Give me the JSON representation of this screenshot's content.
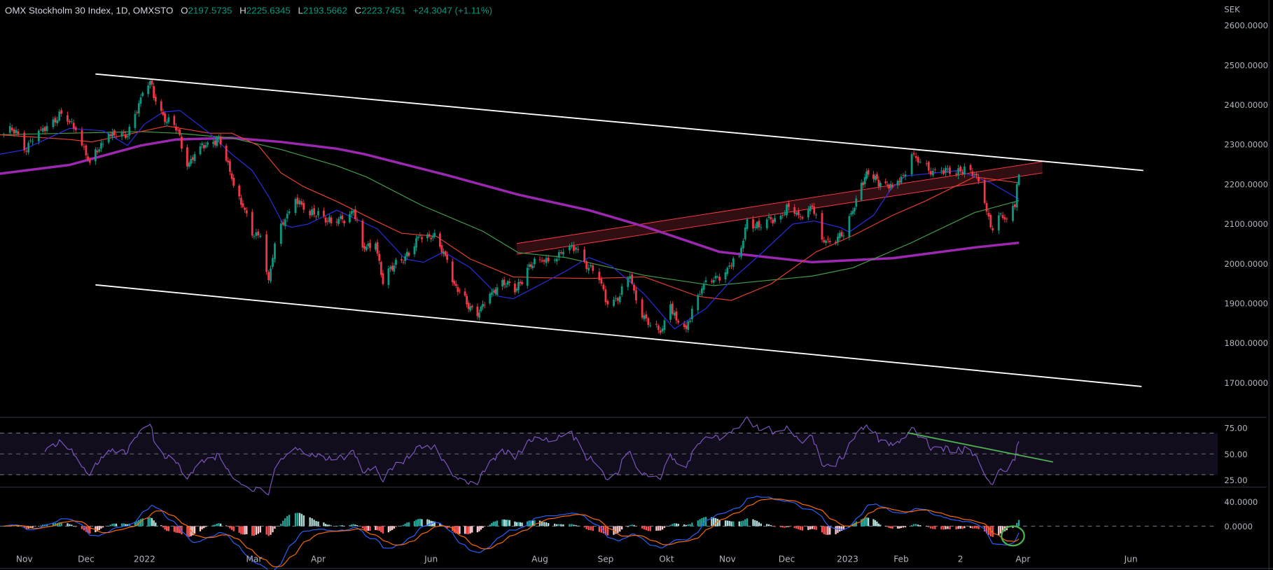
{
  "header": {
    "symbol": "OMX Stockholm 30 Index, 1D, OMXSTO",
    "open_label": "O",
    "open": "2197.5735",
    "high_label": "H",
    "high": "2225.6345",
    "low_label": "L",
    "low": "2193.5662",
    "close_label": "C",
    "close": "2223.7451",
    "change": "+24.3047 (+1.11%)"
  },
  "colors": {
    "up": "#089981",
    "down": "#f23645",
    "ma_fast": "#2a2ee6",
    "ma_mid": "#e8402c",
    "ma_slow": "#43a047",
    "ma_long": "#9c27b0",
    "rsi": "#7e57c2",
    "macd": "#2962ff",
    "signal": "#ff6d00",
    "hist_up_strong": "#26a69a",
    "hist_up_weak": "#b2dfdb",
    "hist_down_strong": "#ff5252",
    "hist_down_weak": "#ffcdd2",
    "channel": "#f23645",
    "trendline": "#ffffff",
    "annotation": "#4caf50"
  },
  "chart_data": {
    "type": "candlestick",
    "currency": "SEK",
    "ylim": [
      1640,
      2640
    ],
    "price_ticks": [
      "2600.0000",
      "2500.0000",
      "2400.0000",
      "2300.0000",
      "2200.0000",
      "2100.0000",
      "2000.0000",
      "1900.0000",
      "1800.0000",
      "1700.0000"
    ],
    "x_ticks": [
      {
        "label": "Nov",
        "date": "2021-11-01"
      },
      {
        "label": "Dec",
        "date": "2021-12-01"
      },
      {
        "label": "2022",
        "date": "2022-01-01"
      },
      {
        "label": "Mar",
        "date": "2022-03-01"
      },
      {
        "label": "Apr",
        "date": "2022-04-01"
      },
      {
        "label": "Jun",
        "date": "2022-06-01"
      },
      {
        "label": "Aug",
        "date": "2022-08-01"
      },
      {
        "label": "Sep",
        "date": "2022-09-01"
      },
      {
        "label": "Okt",
        "date": "2022-10-01"
      },
      {
        "label": "Nov",
        "date": "2022-11-01"
      },
      {
        "label": "Dec",
        "date": "2022-12-01"
      },
      {
        "label": "2023",
        "date": "2023-01-01"
      },
      {
        "label": "Feb",
        "date": "2023-02-01"
      },
      {
        "label": "2",
        "date": "2023-03-01"
      },
      {
        "label": "Apr",
        "date": "2023-04-01"
      },
      {
        "label": "Jun",
        "date": "2023-06-01"
      }
    ],
    "closes": [
      [
        "2021-10-22",
        2326
      ],
      [
        "2021-10-28",
        2336
      ],
      [
        "2021-11-01",
        2285
      ],
      [
        "2021-11-09",
        2336
      ],
      [
        "2021-11-19",
        2377
      ],
      [
        "2021-11-26",
        2336
      ],
      [
        "2021-12-03",
        2254
      ],
      [
        "2021-12-13",
        2326
      ],
      [
        "2021-12-22",
        2316
      ],
      [
        "2021-12-30",
        2418
      ],
      [
        "2022-01-04",
        2459
      ],
      [
        "2022-01-07",
        2408
      ],
      [
        "2022-01-13",
        2357
      ],
      [
        "2022-01-19",
        2336
      ],
      [
        "2022-01-24",
        2244
      ],
      [
        "2022-01-31",
        2295
      ],
      [
        "2022-02-07",
        2306
      ],
      [
        "2022-02-10",
        2316
      ],
      [
        "2022-02-17",
        2213
      ],
      [
        "2022-02-23",
        2142
      ],
      [
        "2022-02-28",
        2070
      ],
      [
        "2022-03-04",
        2070
      ],
      [
        "2022-03-08",
        1958
      ],
      [
        "2022-03-11",
        2050
      ],
      [
        "2022-03-16",
        2111
      ],
      [
        "2022-03-21",
        2162
      ],
      [
        "2022-03-28",
        2121
      ],
      [
        "2022-04-01",
        2132
      ],
      [
        "2022-04-08",
        2101
      ],
      [
        "2022-04-14",
        2111
      ],
      [
        "2022-04-20",
        2132
      ],
      [
        "2022-04-25",
        2040
      ],
      [
        "2022-05-02",
        2050
      ],
      [
        "2022-05-06",
        1948
      ],
      [
        "2022-05-13",
        2009
      ],
      [
        "2022-05-20",
        2019
      ],
      [
        "2022-05-26",
        2070
      ],
      [
        "2022-06-02",
        2070
      ],
      [
        "2022-06-10",
        2009
      ],
      [
        "2022-06-14",
        1948
      ],
      [
        "2022-06-21",
        1897
      ],
      [
        "2022-06-28",
        1876
      ],
      [
        "2022-07-05",
        1927
      ],
      [
        "2022-07-11",
        1958
      ],
      [
        "2022-07-18",
        1927
      ],
      [
        "2022-07-25",
        1989
      ],
      [
        "2022-08-01",
        2009
      ],
      [
        "2022-08-08",
        2009
      ],
      [
        "2022-08-12",
        2029
      ],
      [
        "2022-08-18",
        2040
      ],
      [
        "2022-08-24",
        1989
      ],
      [
        "2022-08-29",
        1958
      ],
      [
        "2022-09-02",
        1897
      ],
      [
        "2022-09-08",
        1917
      ],
      [
        "2022-09-13",
        1968
      ],
      [
        "2022-09-16",
        1907
      ],
      [
        "2022-09-22",
        1845
      ],
      [
        "2022-09-28",
        1825
      ],
      [
        "2022-10-03",
        1897
      ],
      [
        "2022-10-06",
        1856
      ],
      [
        "2022-10-11",
        1835
      ],
      [
        "2022-10-14",
        1886
      ],
      [
        "2022-10-19",
        1937
      ],
      [
        "2022-10-25",
        1958
      ],
      [
        "2022-11-01",
        1989
      ],
      [
        "2022-11-07",
        2019
      ],
      [
        "2022-11-11",
        2111
      ],
      [
        "2022-11-17",
        2091
      ],
      [
        "2022-11-23",
        2111
      ],
      [
        "2022-11-29",
        2121
      ],
      [
        "2022-12-02",
        2142
      ],
      [
        "2022-12-07",
        2121
      ],
      [
        "2022-12-14",
        2142
      ],
      [
        "2022-12-19",
        2060
      ],
      [
        "2022-12-22",
        2060
      ],
      [
        "2022-12-30",
        2070
      ],
      [
        "2023-01-04",
        2132
      ],
      [
        "2023-01-09",
        2203
      ],
      [
        "2023-01-13",
        2224
      ],
      [
        "2023-01-20",
        2203
      ],
      [
        "2023-01-27",
        2193
      ],
      [
        "2023-02-03",
        2224
      ],
      [
        "2023-02-06",
        2275
      ],
      [
        "2023-02-09",
        2254
      ],
      [
        "2023-02-14",
        2234
      ],
      [
        "2023-02-20",
        2234
      ],
      [
        "2023-02-27",
        2224
      ],
      [
        "2023-03-03",
        2244
      ],
      [
        "2023-03-08",
        2224
      ],
      [
        "2023-03-13",
        2152
      ],
      [
        "2023-03-16",
        2091
      ],
      [
        "2023-03-20",
        2121
      ],
      [
        "2023-03-24",
        2111
      ],
      [
        "2023-03-28",
        2142
      ],
      [
        "2023-03-29",
        2199.4
      ],
      [
        "2023-03-30",
        2223.7451
      ]
    ],
    "last_bar": {
      "open": 2197.5735,
      "high": 2225.6345,
      "low": 2193.5662,
      "close": 2223.7451
    },
    "moving_averages": [
      {
        "key": "ma_long",
        "points": [
          [
            "2021-10-20",
            2226
          ],
          [
            "2021-11-23",
            2248
          ],
          [
            "2021-12-30",
            2297
          ],
          [
            "2022-01-18",
            2312
          ],
          [
            "2022-02-17",
            2316
          ],
          [
            "2022-03-14",
            2306
          ],
          [
            "2022-04-11",
            2289
          ],
          [
            "2022-04-26",
            2275
          ],
          [
            "2022-06-10",
            2222
          ],
          [
            "2022-07-20",
            2173
          ],
          [
            "2022-08-24",
            2134
          ],
          [
            "2022-09-20",
            2093
          ],
          [
            "2022-10-28",
            2029
          ],
          [
            "2022-12-14",
            2003
          ],
          [
            "2023-01-27",
            2013
          ],
          [
            "2023-03-08",
            2040
          ],
          [
            "2023-03-30",
            2052
          ]
        ]
      },
      {
        "key": "ma_slow",
        "points": [
          [
            "2021-10-20",
            2324
          ],
          [
            "2021-12-30",
            2332
          ],
          [
            "2022-01-18",
            2328
          ],
          [
            "2022-02-17",
            2316
          ],
          [
            "2022-03-14",
            2287
          ],
          [
            "2022-04-11",
            2246
          ],
          [
            "2022-04-27",
            2218
          ],
          [
            "2022-05-27",
            2146
          ],
          [
            "2022-06-30",
            2081
          ],
          [
            "2022-07-20",
            2027
          ],
          [
            "2022-08-13",
            2015
          ],
          [
            "2022-09-04",
            1989
          ],
          [
            "2022-09-20",
            1970
          ],
          [
            "2022-10-25",
            1944
          ],
          [
            "2022-12-14",
            1968
          ],
          [
            "2023-01-04",
            1989
          ],
          [
            "2023-02-05",
            2050
          ],
          [
            "2023-03-08",
            2128
          ],
          [
            "2023-03-30",
            2158
          ]
        ]
      },
      {
        "key": "ma_mid",
        "points": [
          [
            "2021-10-20",
            2324
          ],
          [
            "2021-11-23",
            2312
          ],
          [
            "2021-12-04",
            2306
          ],
          [
            "2021-12-30",
            2332
          ],
          [
            "2022-01-13",
            2346
          ],
          [
            "2022-02-05",
            2328
          ],
          [
            "2022-02-17",
            2328
          ],
          [
            "2022-03-03",
            2297
          ],
          [
            "2022-03-14",
            2228
          ],
          [
            "2022-03-25",
            2193
          ],
          [
            "2022-04-11",
            2156
          ],
          [
            "2022-05-03",
            2105
          ],
          [
            "2022-05-16",
            2076
          ],
          [
            "2022-06-04",
            2068
          ],
          [
            "2022-06-23",
            2011
          ],
          [
            "2022-07-17",
            1966
          ],
          [
            "2022-08-01",
            1964
          ],
          [
            "2022-08-24",
            1962
          ],
          [
            "2022-09-20",
            1966
          ],
          [
            "2022-10-17",
            1917
          ],
          [
            "2022-11-03",
            1907
          ],
          [
            "2022-11-23",
            1948
          ],
          [
            "2022-12-16",
            2029
          ],
          [
            "2023-01-04",
            2070
          ],
          [
            "2023-01-27",
            2121
          ],
          [
            "2023-02-12",
            2156
          ],
          [
            "2023-03-08",
            2218
          ],
          [
            "2023-03-30",
            2203
          ]
        ]
      },
      {
        "key": "ma_fast",
        "points": [
          [
            "2021-10-20",
            2275
          ],
          [
            "2021-10-31",
            2285
          ],
          [
            "2021-11-23",
            2340
          ],
          [
            "2021-12-10",
            2334
          ],
          [
            "2021-12-23",
            2297
          ],
          [
            "2022-01-01",
            2351
          ],
          [
            "2022-01-11",
            2381
          ],
          [
            "2022-01-20",
            2385
          ],
          [
            "2022-02-05",
            2328
          ],
          [
            "2022-02-17",
            2275
          ],
          [
            "2022-02-28",
            2234
          ],
          [
            "2022-03-08",
            2169
          ],
          [
            "2022-03-15",
            2099
          ],
          [
            "2022-03-19",
            2091
          ],
          [
            "2022-03-27",
            2099
          ],
          [
            "2022-04-11",
            2134
          ],
          [
            "2022-05-03",
            2087
          ],
          [
            "2022-05-18",
            2011
          ],
          [
            "2022-05-28",
            2003
          ],
          [
            "2022-06-08",
            2029
          ],
          [
            "2022-06-23",
            1989
          ],
          [
            "2022-07-09",
            1917
          ],
          [
            "2022-07-17",
            1911
          ],
          [
            "2022-08-01",
            1946
          ],
          [
            "2022-08-13",
            1980
          ],
          [
            "2022-08-24",
            2015
          ],
          [
            "2022-09-04",
            1993
          ],
          [
            "2022-09-20",
            1923
          ],
          [
            "2022-10-05",
            1835
          ],
          [
            "2022-10-21",
            1886
          ],
          [
            "2022-11-03",
            1958
          ],
          [
            "2022-11-19",
            2029
          ],
          [
            "2022-12-04",
            2099
          ],
          [
            "2022-12-15",
            2107
          ],
          [
            "2022-12-28",
            2091
          ],
          [
            "2023-01-02",
            2079
          ],
          [
            "2023-01-16",
            2121
          ],
          [
            "2023-01-26",
            2187
          ],
          [
            "2023-02-03",
            2220
          ],
          [
            "2023-02-10",
            2224
          ],
          [
            "2023-02-28",
            2234
          ],
          [
            "2023-03-16",
            2203
          ],
          [
            "2023-03-30",
            2162
          ]
        ]
      }
    ],
    "drawings": {
      "upper_trendline": [
        [
          "2021-12-06",
          2477
        ],
        [
          "2023-06-08",
          2234
        ]
      ],
      "lower_trendline": [
        [
          "2021-12-06",
          1946
        ],
        [
          "2023-06-07",
          1690
        ]
      ],
      "resistance_channel": {
        "start": "2022-07-19",
        "end": "2023-04-12",
        "start_top": 2050,
        "start_bottom": 2023,
        "end_top": 2256,
        "end_bottom": 2228
      },
      "rsi_trendline": [
        [
          "2023-02-04",
          70.3
        ],
        [
          "2023-04-18",
          42.2
        ]
      ],
      "macd_circle": {
        "date": "2023-03-27",
        "value": -16
      }
    },
    "rsi": {
      "ticks": [
        "75.00",
        "50.00",
        "25.00"
      ],
      "upper_band": 70,
      "middle": 50,
      "lower_band": 30,
      "period": 14
    },
    "macd": {
      "ticks": [
        "40.0000",
        "0.0000"
      ],
      "fast": 12,
      "slow": 26,
      "signal": 9
    }
  }
}
